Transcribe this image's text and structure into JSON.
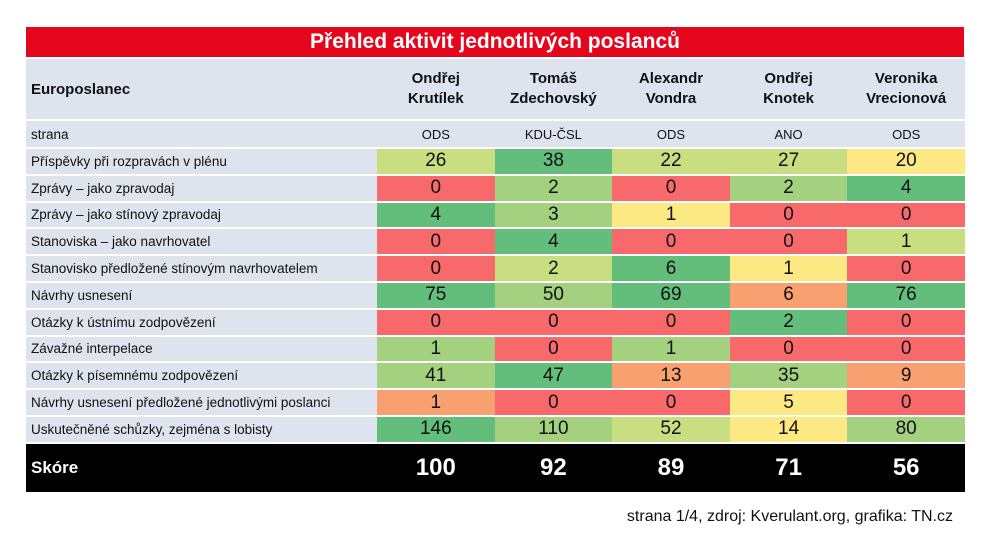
{
  "title": "Přehled aktivit jednotlivých poslanců",
  "header_label": "Europoslanec",
  "party_label": "strana",
  "score_label": "Skóre",
  "footer": "strana 1/4, zdroj: Kverulant.org, grafika: TN.cz",
  "colors": {
    "title_bg": "#e3061d",
    "header_bg": "#dde4ee",
    "score_bg": "#000000",
    "dark_green": "#63be7b",
    "green": "#a3d17f",
    "light_green": "#c9dd81",
    "yellow": "#fde983",
    "orange": "#f8a06f",
    "red": "#f8696b"
  },
  "meps": [
    {
      "first": "Ondřej",
      "last": "Krutílek",
      "party": "ODS",
      "score": "100"
    },
    {
      "first": "Tomáš",
      "last": "Zdechovský",
      "party": "KDU-ČSL",
      "score": "92"
    },
    {
      "first": "Alexandr",
      "last": "Vondra",
      "party": "ODS",
      "score": "89"
    },
    {
      "first": "Ondřej",
      "last": "Knotek",
      "party": "ANO",
      "score": "71"
    },
    {
      "first": "Veronika",
      "last": "Vrecionová",
      "party": "ODS",
      "score": "56"
    }
  ],
  "rows": [
    {
      "label": "Příspěvky při rozpravách v plénu",
      "values": [
        "26",
        "38",
        "22",
        "27",
        "20"
      ],
      "colors": [
        "light_green",
        "dark_green",
        "light_green",
        "light_green",
        "yellow"
      ]
    },
    {
      "label": "Zprávy – jako zpravodaj",
      "values": [
        "0",
        "2",
        "0",
        "2",
        "4"
      ],
      "colors": [
        "red",
        "green",
        "red",
        "green",
        "dark_green"
      ]
    },
    {
      "label": "Zprávy – jako stínový zpravodaj",
      "values": [
        "4",
        "3",
        "1",
        "0",
        "0"
      ],
      "colors": [
        "dark_green",
        "green",
        "yellow",
        "red",
        "red"
      ]
    },
    {
      "label": "Stanoviska – jako navrhovatel",
      "values": [
        "0",
        "4",
        "0",
        "0",
        "1"
      ],
      "colors": [
        "red",
        "dark_green",
        "red",
        "red",
        "light_green"
      ]
    },
    {
      "label": "Stanovisko předložené stínovým navrhovatelem",
      "values": [
        "0",
        "2",
        "6",
        "1",
        "0"
      ],
      "colors": [
        "red",
        "light_green",
        "dark_green",
        "yellow",
        "red"
      ]
    },
    {
      "label": "Návrhy usnesení",
      "values": [
        "75",
        "50",
        "69",
        "6",
        "76"
      ],
      "colors": [
        "dark_green",
        "green",
        "dark_green",
        "orange",
        "dark_green"
      ]
    },
    {
      "label": "Otázky k ústnímu zodpovězení",
      "values": [
        "0",
        "0",
        "0",
        "2",
        "0"
      ],
      "colors": [
        "red",
        "red",
        "red",
        "dark_green",
        "red"
      ]
    },
    {
      "label": "Závažné interpelace",
      "values": [
        "1",
        "0",
        "1",
        "0",
        "0"
      ],
      "colors": [
        "green",
        "red",
        "green",
        "red",
        "red"
      ]
    },
    {
      "label": "Otázky k písemnému zodpovězení",
      "values": [
        "41",
        "47",
        "13",
        "35",
        "9"
      ],
      "colors": [
        "green",
        "dark_green",
        "orange",
        "green",
        "orange"
      ]
    },
    {
      "label": "Návrhy usnesení předložené jednotlivými poslanci",
      "values": [
        "1",
        "0",
        "0",
        "5",
        "0"
      ],
      "colors": [
        "orange",
        "red",
        "red",
        "yellow",
        "red"
      ]
    },
    {
      "label": "Uskutečněné schůzky, zejména s lobisty",
      "values": [
        "146",
        "110",
        "52",
        "14",
        "80"
      ],
      "colors": [
        "dark_green",
        "green",
        "light_green",
        "yellow",
        "green"
      ]
    }
  ]
}
